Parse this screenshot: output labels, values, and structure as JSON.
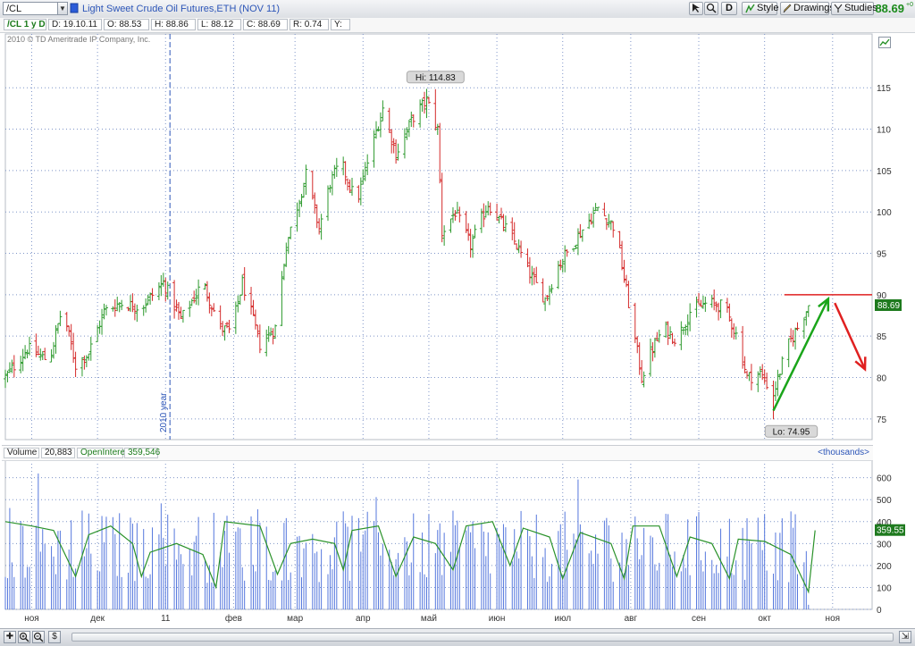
{
  "toolbar": {
    "symbol": "/CL",
    "description": "Light Sweet Crude Oil Futures,ETH (NOV 11)",
    "period_button": "D",
    "style_label": "Style",
    "drawings_label": "Drawings",
    "studies_label": "Studies",
    "last_price": "88.69",
    "change_small": "+0"
  },
  "infobar": {
    "chart_label": "/CL 1 y D",
    "date": "D: 19.10.11",
    "open": "O: 88.53",
    "high": "H: 88.86",
    "low": "L: 88.12",
    "close": "C: 88.69",
    "range": "R: 0.74",
    "y": "Y:"
  },
  "copyright": "2010 © TD Ameritrade IP Company, Inc.",
  "volume_header": {
    "volume_label": "Volume",
    "volume_value": "20,883",
    "oi_label": "OpenInterest",
    "oi_value": "359,546",
    "units": "<thousands>"
  },
  "colors": {
    "up": "#2e9a2e",
    "down": "#d42a2a",
    "volume": "#5577dd",
    "open_interest": "#2a922a",
    "grid": "#7f95c8",
    "price_badge": "#1e7a1e"
  },
  "chart_data": [
    {
      "type": "ohlc",
      "name": "price",
      "ylim": [
        72.5,
        121.5
      ],
      "yticks": [
        75,
        80,
        85,
        90,
        95,
        100,
        105,
        110,
        115
      ],
      "x_range_days": [
        0,
        395
      ],
      "month_labels": [
        {
          "day": 12,
          "label": "ноя"
        },
        {
          "day": 42,
          "label": "дек"
        },
        {
          "day": 73,
          "label": "11"
        },
        {
          "day": 104,
          "label": "фев"
        },
        {
          "day": 132,
          "label": "мар"
        },
        {
          "day": 163,
          "label": "апр"
        },
        {
          "day": 193,
          "label": "май"
        },
        {
          "day": 224,
          "label": "июн"
        },
        {
          "day": 254,
          "label": "июл"
        },
        {
          "day": 285,
          "label": "авг"
        },
        {
          "day": 316,
          "label": "сен"
        },
        {
          "day": 346,
          "label": "окт"
        },
        {
          "day": 377,
          "label": "ноя"
        }
      ],
      "year_marker": {
        "day": 75,
        "label": "2010 year"
      },
      "high_label": "Hi: 114.83",
      "low_label": "Lo: 74.95",
      "last_badge": "88.69",
      "price_path": [
        [
          0,
          80.0
        ],
        [
          10,
          83.5
        ],
        [
          20,
          82.0
        ],
        [
          26,
          88.5
        ],
        [
          32,
          81.5
        ],
        [
          38,
          83.0
        ],
        [
          45,
          88.0
        ],
        [
          52,
          89.0
        ],
        [
          62,
          88.5
        ],
        [
          72,
          91.5
        ],
        [
          80,
          87.0
        ],
        [
          90,
          91.5
        ],
        [
          98,
          86.0
        ],
        [
          103,
          85.5
        ],
        [
          108,
          91.5
        ],
        [
          116,
          84.0
        ],
        [
          123,
          86.0
        ],
        [
          128,
          96.0
        ],
        [
          137,
          104.5
        ],
        [
          143,
          98.0
        ],
        [
          148,
          103.5
        ],
        [
          153,
          106.0
        ],
        [
          160,
          101.0
        ],
        [
          167,
          108.0
        ],
        [
          172,
          112.5
        ],
        [
          178,
          107.0
        ],
        [
          186,
          111.5
        ],
        [
          192,
          113.5
        ],
        [
          197,
          110.0
        ],
        [
          199,
          97.5
        ],
        [
          205,
          100.0
        ],
        [
          212,
          96.0
        ],
        [
          220,
          101.0
        ],
        [
          228,
          98.0
        ],
        [
          233,
          96.0
        ],
        [
          240,
          92.0
        ],
        [
          246,
          89.5
        ],
        [
          252,
          93.5
        ],
        [
          262,
          97.5
        ],
        [
          270,
          100.5
        ],
        [
          278,
          98.0
        ],
        [
          284,
          89.0
        ],
        [
          290,
          80.0
        ],
        [
          294,
          83.0
        ],
        [
          300,
          86.0
        ],
        [
          306,
          84.5
        ],
        [
          312,
          88.0
        ],
        [
          320,
          89.0
        ],
        [
          328,
          88.5
        ],
        [
          334,
          84.5
        ],
        [
          338,
          80.0
        ],
        [
          344,
          80.5
        ],
        [
          350,
          78.0
        ],
        [
          356,
          83.5
        ],
        [
          361,
          86.0
        ],
        [
          366,
          88.69
        ]
      ],
      "arrows": [
        {
          "color": "#1aa51a",
          "from": [
            350,
            76.0
          ],
          "to": [
            375,
            89.5
          ]
        },
        {
          "color": "#e02020",
          "from": [
            378,
            89.0
          ],
          "to": [
            398,
            81.0
          ]
        }
      ],
      "resistance_line": {
        "from_day": 355,
        "to_day": 410,
        "value": 90.0,
        "color": "#e02020"
      }
    },
    {
      "type": "bar+line",
      "name": "volume",
      "ylim": [
        0,
        680
      ],
      "yticks": [
        0,
        100,
        200,
        300,
        400,
        500,
        600
      ],
      "open_interest_path": [
        [
          0,
          400
        ],
        [
          12,
          380
        ],
        [
          22,
          360
        ],
        [
          32,
          150
        ],
        [
          38,
          340
        ],
        [
          48,
          380
        ],
        [
          58,
          300
        ],
        [
          62,
          150
        ],
        [
          66,
          260
        ],
        [
          78,
          300
        ],
        [
          90,
          250
        ],
        [
          96,
          100
        ],
        [
          100,
          400
        ],
        [
          116,
          380
        ],
        [
          124,
          160
        ],
        [
          130,
          300
        ],
        [
          140,
          320
        ],
        [
          150,
          300
        ],
        [
          154,
          180
        ],
        [
          158,
          360
        ],
        [
          170,
          380
        ],
        [
          178,
          150
        ],
        [
          186,
          330
        ],
        [
          196,
          300
        ],
        [
          204,
          180
        ],
        [
          210,
          380
        ],
        [
          222,
          400
        ],
        [
          230,
          200
        ],
        [
          236,
          370
        ],
        [
          248,
          330
        ],
        [
          254,
          140
        ],
        [
          262,
          350
        ],
        [
          276,
          300
        ],
        [
          282,
          140
        ],
        [
          286,
          380
        ],
        [
          298,
          380
        ],
        [
          306,
          150
        ],
        [
          312,
          330
        ],
        [
          322,
          300
        ],
        [
          330,
          140
        ],
        [
          334,
          320
        ],
        [
          346,
          310
        ],
        [
          358,
          250
        ],
        [
          366,
          80
        ],
        [
          369,
          360
        ]
      ]
    }
  ]
}
